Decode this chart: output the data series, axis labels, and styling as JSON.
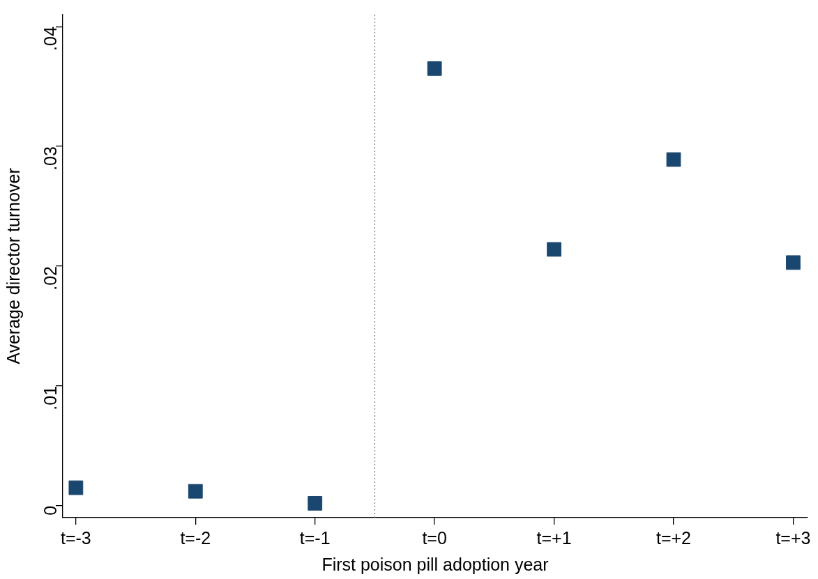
{
  "chart_data": {
    "type": "scatter",
    "xlabel": "First poison pill adoption year",
    "ylabel": "Average director turnover",
    "x": [
      -3,
      -2,
      -1,
      0,
      1,
      2,
      3
    ],
    "series": [
      {
        "color": "#1a476f",
        "values": [
          0.0015,
          0.0012,
          0.0002,
          0.0365,
          0.0214,
          0.0289,
          0.0203
        ]
      }
    ],
    "xlim": [
      -3.11,
      3.12
    ],
    "xticks": [
      {
        "value": -3,
        "label": "t=-3"
      },
      {
        "value": -2,
        "label": "t=-2"
      },
      {
        "value": -1,
        "label": "t=-1"
      },
      {
        "value": 0,
        "label": "t=0"
      },
      {
        "value": 1,
        "label": "t=+1"
      },
      {
        "value": 2,
        "label": "t=+2"
      },
      {
        "value": 3,
        "label": "t=+3"
      }
    ],
    "ylim": [
      -0.001,
      0.041
    ],
    "yticks": [
      0,
      {
        "value": 0.01,
        "label": ".01"
      },
      {
        "value": 0.02,
        "label": ".02"
      },
      {
        "value": 0.03,
        "label": ".03"
      },
      {
        "value": 0.04,
        "label": ".04"
      }
    ],
    "ref_lines": [
      {
        "axis": "x",
        "value": -0.5,
        "color": "#808080",
        "line_style": "dotted"
      }
    ],
    "grid": false,
    "legend": false,
    "marker": "square"
  }
}
